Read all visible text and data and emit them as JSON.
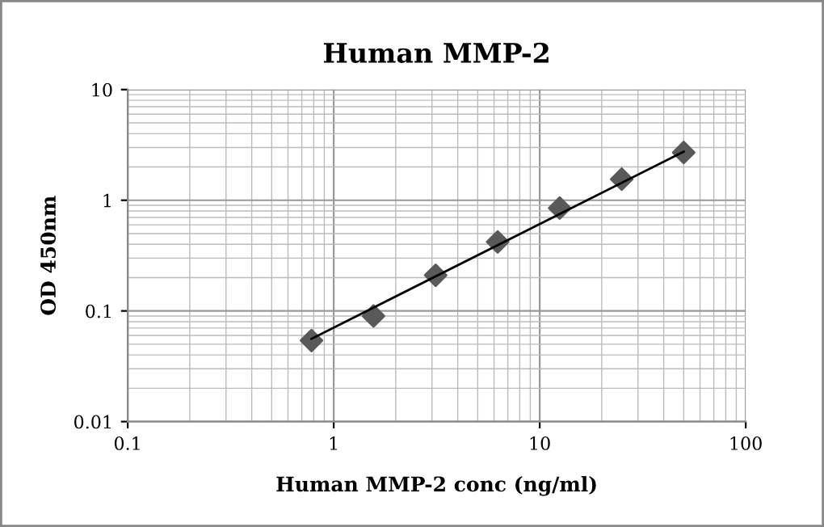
{
  "chart_data": {
    "type": "scatter",
    "title": "Human MMP-2",
    "xlabel": "Human MMP-2 conc (ng/ml)",
    "ylabel": "OD 450nm",
    "log": "xy",
    "xlim": [
      0.1,
      100
    ],
    "xticks": [
      0.1,
      1,
      10,
      100
    ],
    "ylim": [
      0.01,
      10
    ],
    "yticks": [
      0.01,
      0.1,
      1,
      10
    ],
    "grid": true,
    "marker": "diamond",
    "series": [
      {
        "color": "#595959",
        "x": [
          0.78,
          1.56,
          3.125,
          6.25,
          12.5,
          25,
          50
        ],
        "values": [
          0.054,
          0.09,
          0.21,
          0.42,
          0.85,
          1.55,
          2.7
        ]
      },
      {
        "type": "line",
        "color": "#000000",
        "x": [
          0.78,
          50
        ],
        "values": [
          0.056,
          2.75
        ],
        "marker": "none",
        "line_style": "solid"
      }
    ]
  }
}
